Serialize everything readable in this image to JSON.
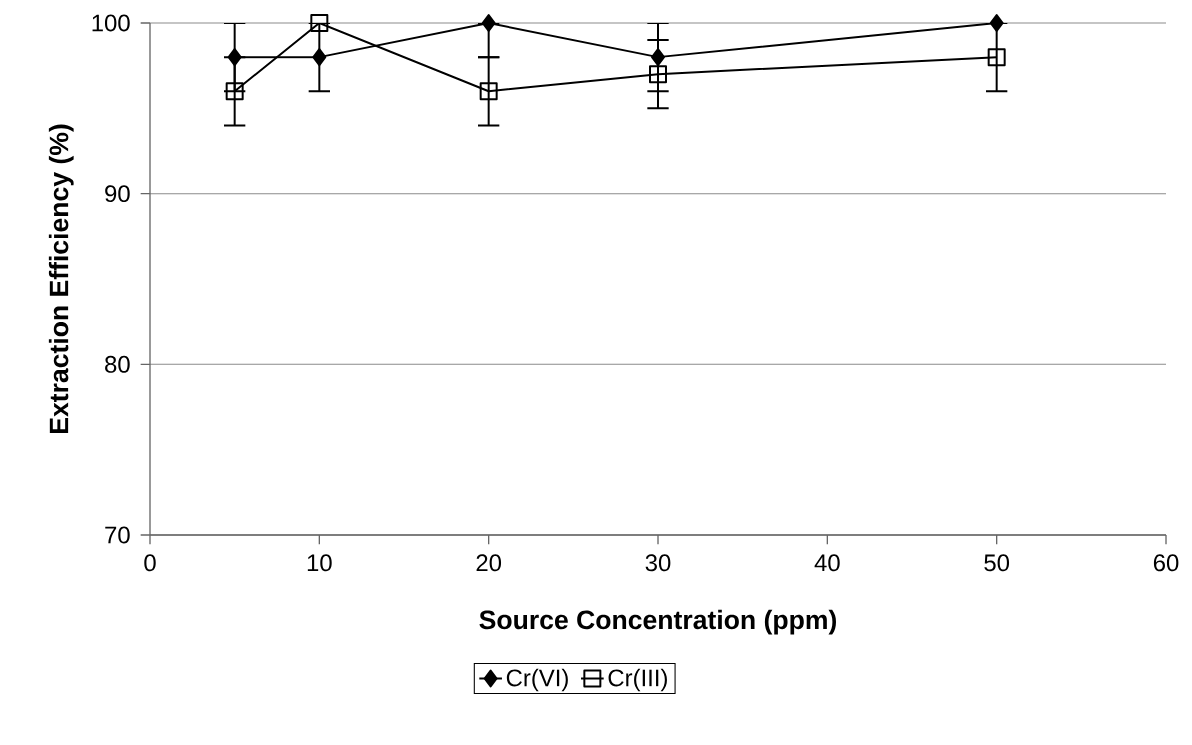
{
  "chart_data": {
    "type": "line",
    "xlabel": "Source Concentration (ppm)",
    "ylabel": "Extraction Efficiency (%)",
    "x": [
      5,
      10,
      20,
      30,
      50
    ],
    "xlim": [
      0,
      60
    ],
    "xticks": [
      0,
      10,
      20,
      30,
      40,
      50,
      60
    ],
    "ylim": [
      70,
      100
    ],
    "yticks": [
      70,
      80,
      90,
      100
    ],
    "grid": "y",
    "legend": "bottom",
    "series": [
      {
        "name": "Cr(VI)",
        "color": "#000000",
        "marker": "diamond",
        "values": [
          98,
          98,
          100,
          98,
          100
        ],
        "errors": [
          2,
          2,
          [
            98,
            100
          ],
          2,
          null
        ]
      },
      {
        "name": "Cr(III)",
        "color": "#000000",
        "marker": "square",
        "values": [
          96,
          100,
          96,
          97,
          98
        ],
        "errors": [
          2,
          null,
          2,
          2,
          2
        ]
      }
    ]
  }
}
